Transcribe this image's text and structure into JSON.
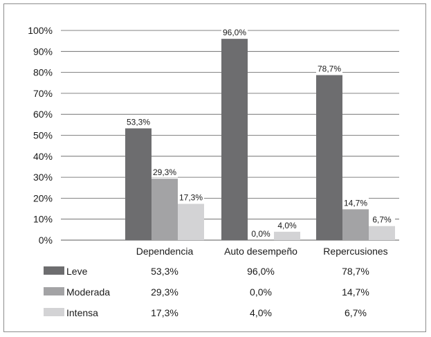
{
  "chart_data": {
    "type": "bar",
    "categories": [
      "Dependencia",
      "Auto desempeño",
      "Repercusiones"
    ],
    "series": [
      {
        "name": "Leve",
        "values": [
          53.3,
          96.0,
          78.7
        ],
        "labels": [
          "53,3%",
          "96,0%",
          "78,7%"
        ],
        "color": "#6d6d6f"
      },
      {
        "name": "Moderada",
        "values": [
          29.3,
          0.0,
          14.7
        ],
        "labels": [
          "29,3%",
          "0,0%",
          "14,7%"
        ],
        "color": "#a3a3a5"
      },
      {
        "name": "Intensa",
        "values": [
          17.3,
          4.0,
          6.7
        ],
        "labels": [
          "17,3%",
          "4,0%",
          "6,7%"
        ],
        "color": "#d3d3d5"
      }
    ],
    "yticks": [
      "0%",
      "10%",
      "20%",
      "30%",
      "40%",
      "50%",
      "60%",
      "70%",
      "80%",
      "90%",
      "100%"
    ],
    "ylim": [
      0,
      100
    ],
    "grid": true,
    "legend": "data-table-below"
  }
}
